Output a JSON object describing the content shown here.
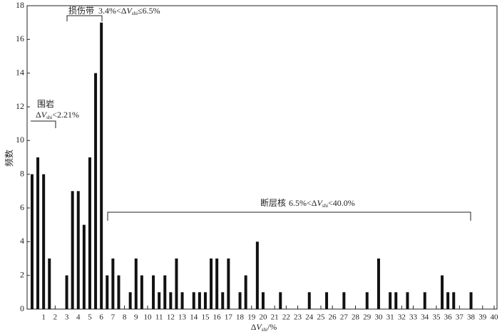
{
  "chart_data": {
    "type": "bar",
    "y_label": "频数",
    "x_label": {
      "pre": "Δ",
      "var": "V",
      "sub": "shi",
      "post": "/%"
    },
    "annotations": [
      {
        "name": "围岩",
        "pre": "Δ",
        "var": "V",
        "sub": "shi",
        "post": "<2.21%"
      },
      {
        "name": "损伤带",
        "pre": "3.4%<Δ",
        "var": "V",
        "sub": "shi",
        "post": "≤6.5%"
      },
      {
        "name": "断层核",
        "pre": "6.5%<Δ",
        "var": "V",
        "sub": "shi",
        "post": "<40.0%"
      }
    ],
    "color": "#111111",
    "x": [
      0,
      0.5,
      1,
      1.5,
      3,
      3.5,
      4,
      4.5,
      5,
      5.5,
      6,
      6.5,
      7,
      7.5,
      8.5,
      9,
      9.5,
      10.5,
      11,
      11.5,
      12,
      12.5,
      13,
      14,
      14.5,
      15,
      15.5,
      16,
      16.5,
      17,
      18,
      18.5,
      19.5,
      20,
      21.5,
      24,
      25.5,
      27,
      29,
      30,
      31,
      31.5,
      32.5,
      34,
      35.5,
      36,
      36.5,
      38
    ],
    "values": [
      8,
      9,
      8,
      3,
      2,
      7,
      7,
      5,
      9,
      14,
      17,
      2,
      3,
      2,
      1,
      3,
      2,
      2,
      1,
      2,
      1,
      3,
      1,
      1,
      1,
      1,
      3,
      3,
      1,
      3,
      1,
      2,
      4,
      1,
      1,
      1,
      1,
      1,
      1,
      3,
      1,
      1,
      1,
      1,
      2,
      1,
      1,
      1
    ],
    "xlim": [
      -0.43,
      40.25
    ],
    "ylim": [
      0,
      18
    ],
    "xticks": [
      1,
      2,
      3,
      4,
      5,
      6,
      7,
      8,
      9,
      10,
      11,
      12,
      13,
      14,
      15,
      16,
      17,
      18,
      19,
      20,
      21,
      22,
      23,
      24,
      25,
      26,
      27,
      28,
      29,
      30,
      31,
      32,
      33,
      34,
      35,
      36,
      37,
      38,
      39,
      40
    ],
    "yticks": [
      0,
      2,
      4,
      6,
      8,
      10,
      12,
      14,
      16,
      18
    ]
  }
}
